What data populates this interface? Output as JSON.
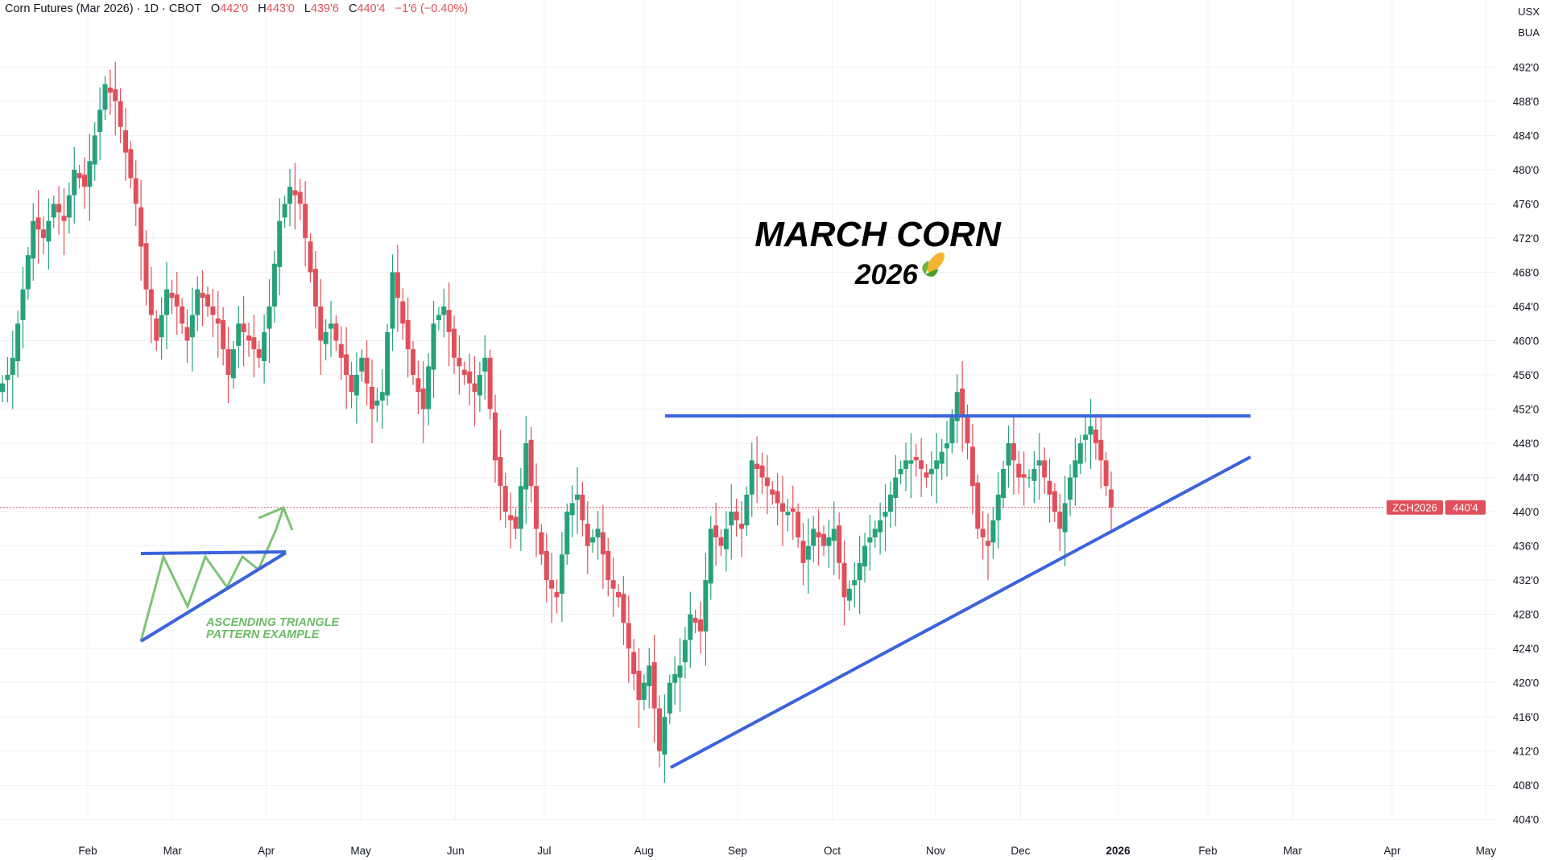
{
  "header": {
    "symbol": "Corn Futures (Mar 2026) · 1D · CBOT",
    "o_label": "O",
    "o": "442'0",
    "h_label": "H",
    "h": "443'0",
    "l_label": "L",
    "l": "439'6",
    "c_label": "C",
    "c": "440'4",
    "change": "−1'6 (−0.40%)"
  },
  "units": {
    "currency": "USX",
    "unit": "BUA"
  },
  "colors": {
    "up": "#26a17b",
    "down": "#e0505a",
    "trendline": "#3b63dc",
    "example": "#6dbb67"
  },
  "chart_data": {
    "type": "candlestick",
    "title": "MARCH CORN",
    "subtitle": "2026",
    "ylim": [
      402,
      495
    ],
    "y_ticks": [
      "492'0",
      "488'0",
      "484'0",
      "480'0",
      "476'0",
      "472'0",
      "468'0",
      "464'0",
      "460'0",
      "456'0",
      "452'0",
      "448'0",
      "444'0",
      "440'0",
      "436'0",
      "432'0",
      "428'0",
      "424'0",
      "420'0",
      "416'0",
      "412'0",
      "408'0",
      "404'0"
    ],
    "y_tick_values": [
      492,
      488,
      484,
      480,
      476,
      472,
      468,
      464,
      460,
      456,
      452,
      448,
      444,
      440,
      436,
      432,
      428,
      424,
      420,
      416,
      412,
      408,
      404
    ],
    "x_ticks": [
      "Feb",
      "Mar",
      "Apr",
      "May",
      "Jun",
      "Jul",
      "Aug",
      "Sep",
      "Oct",
      "Nov",
      "Dec",
      "2026",
      "Feb",
      "Mar",
      "Apr",
      "May"
    ],
    "closes": [
      455,
      456,
      458,
      462,
      466,
      470,
      474,
      473,
      472,
      474,
      476,
      475,
      474,
      477,
      480,
      479,
      478,
      481,
      484,
      487,
      490,
      489,
      488,
      485,
      482,
      479,
      476,
      471,
      466,
      463,
      460,
      463,
      466,
      465,
      464,
      462,
      460,
      463,
      466,
      465,
      464,
      463,
      462,
      459,
      456,
      459,
      462,
      461,
      460,
      459,
      458,
      461,
      464,
      469,
      474,
      476,
      478,
      477,
      476,
      472,
      468,
      464,
      460,
      461,
      462,
      460,
      458,
      456,
      454,
      456,
      458,
      455,
      452,
      453,
      454,
      461,
      468,
      465,
      462,
      459,
      456,
      454,
      452,
      457,
      462,
      463,
      464,
      461,
      458,
      457,
      456,
      455,
      454,
      456,
      458,
      452,
      446,
      443,
      440,
      439,
      438,
      443,
      448,
      443,
      438,
      435,
      432,
      431,
      430,
      435,
      440,
      441,
      442,
      439,
      436,
      437,
      438,
      435,
      432,
      431,
      430,
      427,
      424,
      421,
      418,
      420,
      422,
      417,
      412,
      416,
      420,
      421,
      422,
      425,
      428,
      427,
      426,
      432,
      438,
      437,
      436,
      438,
      440,
      439,
      438,
      442,
      446,
      445,
      444,
      443,
      442,
      441,
      440,
      440,
      440,
      437,
      434,
      436,
      438,
      437,
      436,
      437,
      438,
      434,
      430,
      431,
      432,
      434,
      436,
      437,
      438,
      439,
      440,
      442,
      444,
      445,
      446,
      446,
      446,
      445,
      444,
      445,
      446,
      447,
      448,
      451,
      454,
      451,
      448,
      443,
      438,
      437,
      436,
      439,
      442,
      445,
      448,
      446,
      444,
      444,
      444,
      445,
      446,
      444,
      442,
      440,
      438,
      441,
      444,
      446,
      448,
      449,
      450,
      448,
      446,
      443,
      440.5
    ],
    "annotations": {
      "resistance_price": 451.2,
      "current_price": 440.5,
      "current_label": "ZCH2026",
      "current_value": "440'4",
      "pattern_note_line1": "ASCENDING TRIANGLE",
      "pattern_note_line2": "PATTERN EXAMPLE"
    }
  }
}
